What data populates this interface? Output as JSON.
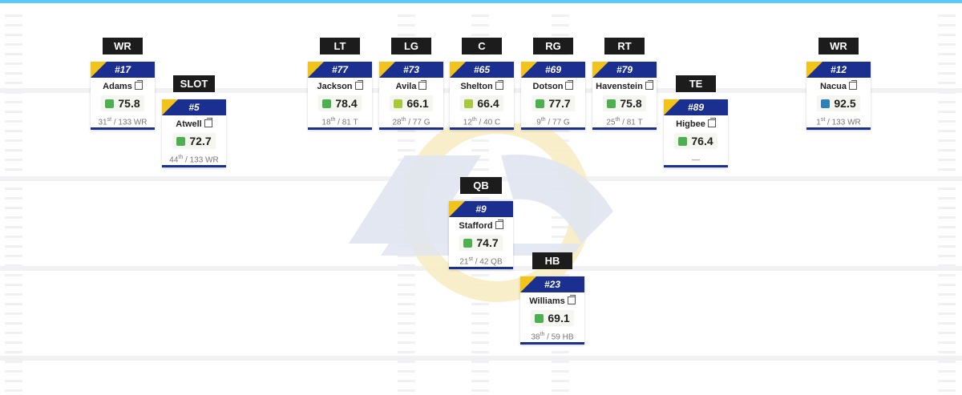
{
  "colors": {
    "accent_top": "#5ec8f2",
    "card_navy": "#1a2f8f",
    "card_gold": "#f2c318",
    "grade_green": "#4caf50",
    "grade_lightgreen": "#a6c93a",
    "grade_blue": "#2f7fb8"
  },
  "players": [
    {
      "id": "wr-left",
      "pos": "WR",
      "num": "#17",
      "name": "Adams",
      "grade": "75.8",
      "grade_color": "#4caf50",
      "rank_n": "31",
      "rank_suf": "st",
      "rank_rest": " / 133 WR"
    },
    {
      "id": "slot",
      "pos": "SLOT",
      "num": "#5",
      "name": "Atwell",
      "grade": "72.7",
      "grade_color": "#4caf50",
      "rank_n": "44",
      "rank_suf": "th",
      "rank_rest": " / 133 WR"
    },
    {
      "id": "lt",
      "pos": "LT",
      "num": "#77",
      "name": "Jackson",
      "grade": "78.4",
      "grade_color": "#4caf50",
      "rank_n": "18",
      "rank_suf": "th",
      "rank_rest": " / 81 T"
    },
    {
      "id": "lg",
      "pos": "LG",
      "num": "#73",
      "name": "Avila",
      "grade": "66.1",
      "grade_color": "#a6c93a",
      "rank_n": "28",
      "rank_suf": "th",
      "rank_rest": " / 77 G"
    },
    {
      "id": "c",
      "pos": "C",
      "num": "#65",
      "name": "Shelton",
      "grade": "66.4",
      "grade_color": "#a6c93a",
      "rank_n": "12",
      "rank_suf": "th",
      "rank_rest": " / 40 C"
    },
    {
      "id": "rg",
      "pos": "RG",
      "num": "#69",
      "name": "Dotson",
      "grade": "77.7",
      "grade_color": "#4caf50",
      "rank_n": "9",
      "rank_suf": "th",
      "rank_rest": " / 77 G"
    },
    {
      "id": "rt",
      "pos": "RT",
      "num": "#79",
      "name": "Havenstein",
      "grade": "75.8",
      "grade_color": "#4caf50",
      "rank_n": "25",
      "rank_suf": "th",
      "rank_rest": " / 81 T"
    },
    {
      "id": "te",
      "pos": "TE",
      "num": "#89",
      "name": "Higbee",
      "grade": "76.4",
      "grade_color": "#4caf50",
      "rank_n": "",
      "rank_suf": "",
      "rank_rest": "—"
    },
    {
      "id": "wr-right",
      "pos": "WR",
      "num": "#12",
      "name": "Nacua",
      "grade": "92.5",
      "grade_color": "#2f7fb8",
      "rank_n": "1",
      "rank_suf": "st",
      "rank_rest": " / 133 WR"
    },
    {
      "id": "qb",
      "pos": "QB",
      "num": "#9",
      "name": "Stafford",
      "grade": "74.7",
      "grade_color": "#4caf50",
      "rank_n": "21",
      "rank_suf": "st",
      "rank_rest": " / 42 QB"
    },
    {
      "id": "hb",
      "pos": "HB",
      "num": "#23",
      "name": "Williams",
      "grade": "69.1",
      "grade_color": "#4caf50",
      "rank_n": "38",
      "rank_suf": "th",
      "rank_rest": " / 59 HB"
    }
  ]
}
